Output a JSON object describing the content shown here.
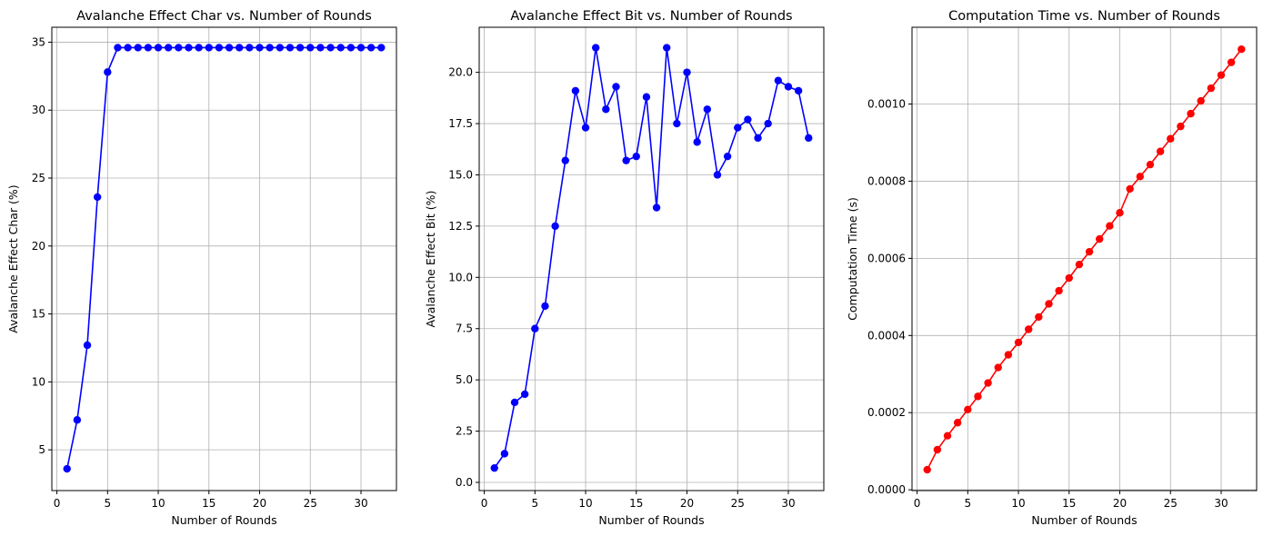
{
  "chart_data": [
    {
      "type": "line",
      "title": "Avalanche Effect Char vs. Number of Rounds",
      "xlabel": "Number of Rounds",
      "ylabel": "Avalanche Effect Char (%)",
      "xlim": [
        -0.5,
        33.5
      ],
      "ylim": [
        2.0,
        36.1
      ],
      "xticks": [
        0,
        5,
        10,
        15,
        20,
        25,
        30
      ],
      "yticks": [
        5,
        10,
        15,
        20,
        25,
        30,
        35
      ],
      "xtick_labels": [
        "0",
        "5",
        "10",
        "15",
        "20",
        "25",
        "30"
      ],
      "ytick_labels": [
        "5",
        "10",
        "15",
        "20",
        "25",
        "30",
        "35"
      ],
      "grid": true,
      "color": "#0000ff",
      "x": [
        1,
        2,
        3,
        4,
        5,
        6,
        7,
        8,
        9,
        10,
        11,
        12,
        13,
        14,
        15,
        16,
        17,
        18,
        19,
        20,
        21,
        22,
        23,
        24,
        25,
        26,
        27,
        28,
        29,
        30,
        31,
        32
      ],
      "values": [
        3.6,
        7.2,
        12.7,
        23.6,
        32.8,
        34.6,
        34.6,
        34.6,
        34.6,
        34.6,
        34.6,
        34.6,
        34.6,
        34.6,
        34.6,
        34.6,
        34.6,
        34.6,
        34.6,
        34.6,
        34.6,
        34.6,
        34.6,
        34.6,
        34.6,
        34.6,
        34.6,
        34.6,
        34.6,
        34.6,
        34.6,
        34.6
      ]
    },
    {
      "type": "line",
      "title": "Avalanche Effect Bit vs. Number of Rounds",
      "xlabel": "Number of Rounds",
      "ylabel": "Avalanche Effect Bit (%)",
      "xlim": [
        -0.5,
        33.5
      ],
      "ylim": [
        -0.4,
        22.2
      ],
      "xticks": [
        0,
        5,
        10,
        15,
        20,
        25,
        30
      ],
      "yticks": [
        0,
        2.5,
        5,
        7.5,
        10,
        12.5,
        15,
        17.5,
        20
      ],
      "xtick_labels": [
        "0",
        "5",
        "10",
        "15",
        "20",
        "25",
        "30"
      ],
      "ytick_labels": [
        "0.0",
        "2.5",
        "5.0",
        "7.5",
        "10.0",
        "12.5",
        "15.0",
        "17.5",
        "20.0"
      ],
      "grid": true,
      "color": "#0000ff",
      "x": [
        1,
        2,
        3,
        4,
        5,
        6,
        7,
        8,
        9,
        10,
        11,
        12,
        13,
        14,
        15,
        16,
        17,
        18,
        19,
        20,
        21,
        22,
        23,
        24,
        25,
        26,
        27,
        28,
        29,
        30,
        31,
        32
      ],
      "values": [
        0.7,
        1.4,
        3.9,
        4.3,
        7.5,
        8.6,
        12.5,
        15.7,
        19.1,
        17.3,
        21.2,
        18.2,
        19.3,
        15.7,
        15.9,
        18.8,
        13.4,
        21.2,
        17.5,
        20.0,
        16.6,
        18.2,
        15.0,
        15.9,
        17.3,
        17.7,
        16.8,
        17.5,
        19.6,
        19.3,
        19.1,
        16.8
      ]
    },
    {
      "type": "line",
      "title": "Computation Time vs. Number of Rounds",
      "xlabel": "Number of Rounds",
      "ylabel": "Computation Time (s)",
      "xlim": [
        -0.5,
        33.5
      ],
      "ylim": [
        -2e-06,
        0.001199
      ],
      "xticks": [
        0,
        5,
        10,
        15,
        20,
        25,
        30
      ],
      "yticks": [
        0,
        0.0002,
        0.0004,
        0.0006,
        0.0008,
        0.001
      ],
      "xtick_labels": [
        "0",
        "5",
        "10",
        "15",
        "20",
        "25",
        "30"
      ],
      "ytick_labels": [
        "0.0000",
        "0.0002",
        "0.0004",
        "0.0006",
        "0.0008",
        "0.0010"
      ],
      "grid": true,
      "color": "#ff0000",
      "x": [
        1,
        2,
        3,
        4,
        5,
        6,
        7,
        8,
        9,
        10,
        11,
        12,
        13,
        14,
        15,
        16,
        17,
        18,
        19,
        20,
        21,
        22,
        23,
        24,
        25,
        26,
        27,
        28,
        29,
        30,
        31,
        32
      ],
      "values": [
        5.2e-05,
        0.000104,
        0.00014,
        0.000174,
        0.000208,
        0.000242,
        0.000277,
        0.000317,
        0.00035,
        0.000382,
        0.000416,
        0.000448,
        0.000482,
        0.000516,
        0.000549,
        0.000584,
        0.000617,
        0.00065,
        0.000684,
        0.000718,
        0.00078,
        0.000812,
        0.000843,
        0.000877,
        0.00091,
        0.000942,
        0.000975,
        0.001008,
        0.001041,
        0.001075,
        0.001108,
        0.001142
      ]
    }
  ]
}
